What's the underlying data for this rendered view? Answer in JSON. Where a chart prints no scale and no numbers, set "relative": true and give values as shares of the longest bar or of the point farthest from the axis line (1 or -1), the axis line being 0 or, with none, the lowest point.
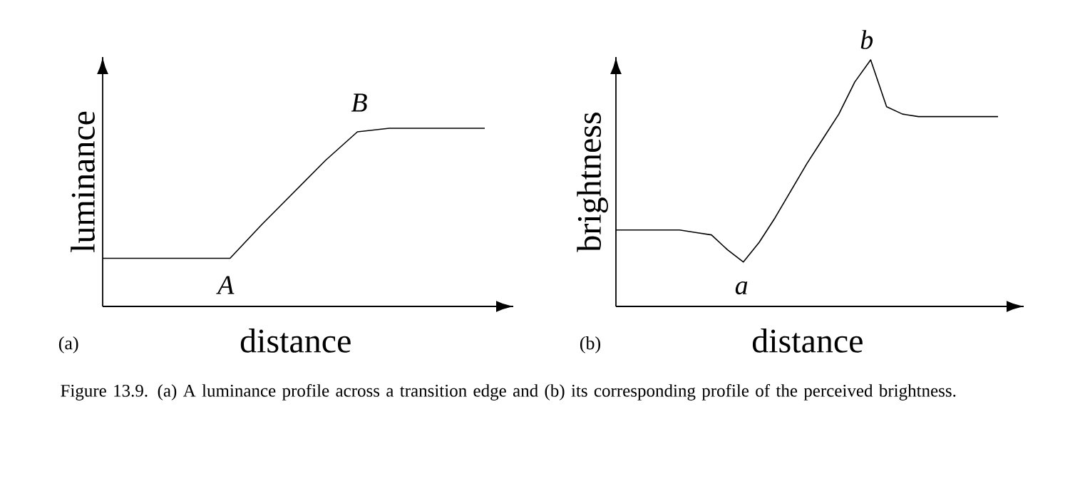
{
  "chart_data": [
    {
      "type": "line",
      "relative": true,
      "xlabel": "distance",
      "ylabel": "luminance",
      "categories": [
        null,
        null,
        null,
        null,
        null,
        null,
        null,
        null,
        null,
        null,
        null,
        null,
        null
      ],
      "series": [
        {
          "color": "#000000",
          "values": [
            0.27,
            0.27,
            0.27,
            0.27,
            0.27,
            0.46,
            0.64,
            0.82,
            0.98,
            1,
            1,
            1,
            1
          ]
        }
      ],
      "annotations": [
        "A",
        "B",
        "(a)",
        "Figure 13.9.  (a) A luminance profile across a transition edge and (b) its corresponding profile of the perceived brightness."
      ],
      "marker": "none",
      "line_style": "solid"
    },
    {
      "type": "line",
      "relative": true,
      "xlabel": "distance",
      "ylabel": "brightness",
      "categories": [
        null,
        null,
        null,
        null,
        null,
        null,
        null,
        null,
        null,
        null,
        null,
        null,
        null,
        null,
        null,
        null,
        null,
        null,
        null,
        null,
        null,
        null,
        null,
        null,
        null
      ],
      "series": [
        {
          "color": "#000000",
          "values": [
            0.31,
            0.31,
            0.31,
            0.31,
            0.31,
            0.3,
            0.29,
            0.23,
            0.18,
            0.26,
            0.36,
            0.47,
            0.58,
            0.68,
            0.78,
            0.91,
            1,
            0.81,
            0.78,
            0.77,
            0.77,
            0.77,
            0.77,
            0.77,
            0.77
          ]
        }
      ],
      "annotations": [
        "a",
        "b",
        "(b)"
      ],
      "marker": "none",
      "line_style": "solid"
    }
  ]
}
